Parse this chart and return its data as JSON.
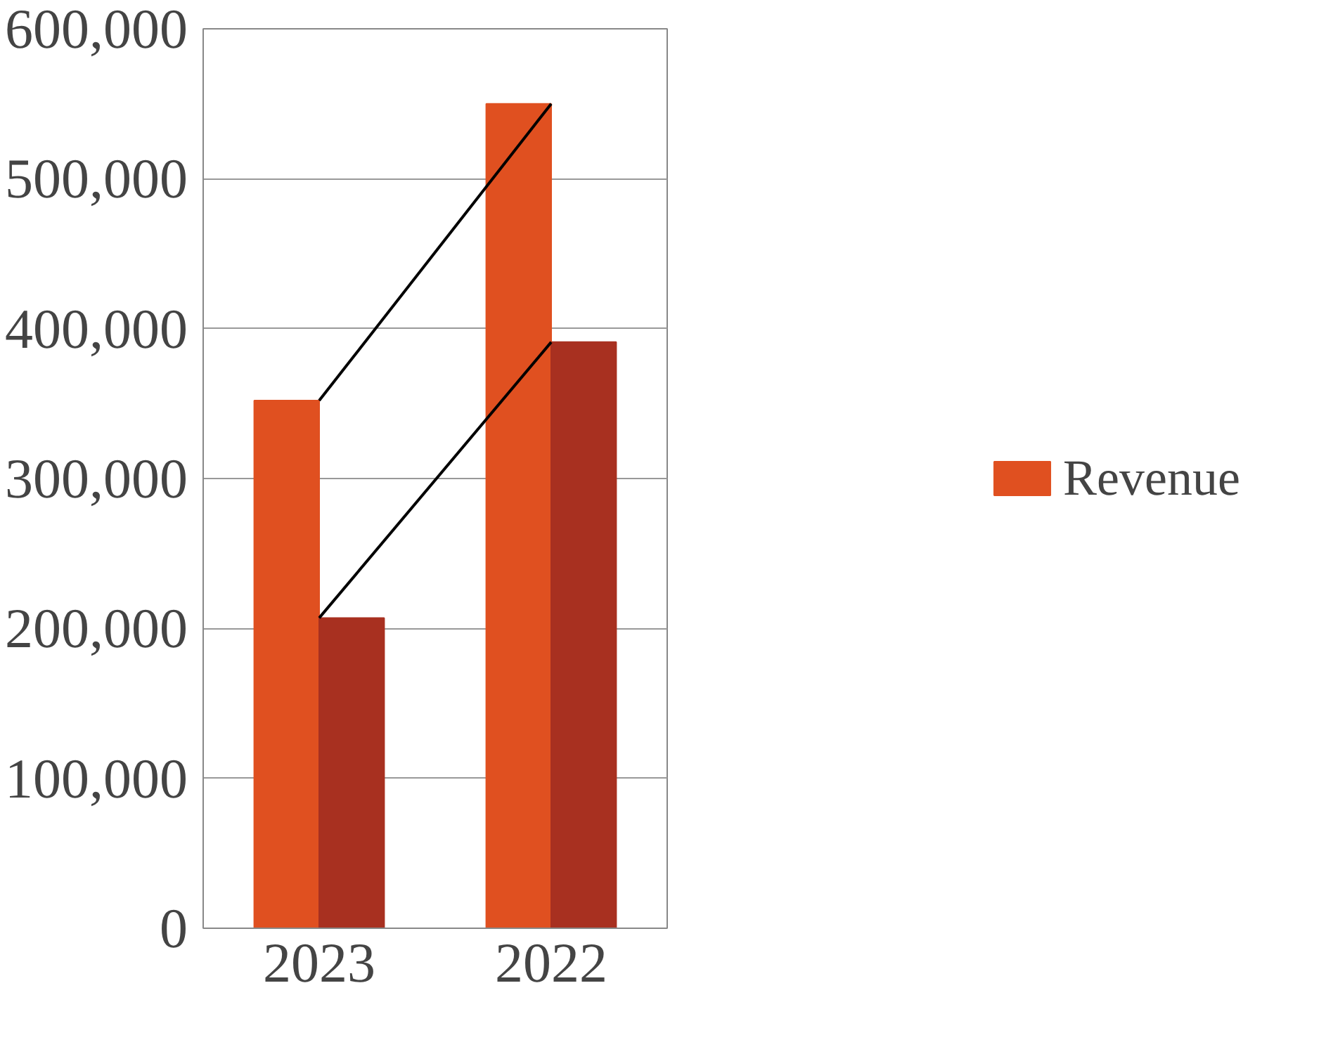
{
  "chart_data": {
    "type": "bar",
    "categories": [
      "2023",
      "2022"
    ],
    "series": [
      {
        "name": "Revenue",
        "color": "#e05020",
        "values": [
          352000,
          550000
        ]
      },
      {
        "color": "#a83020",
        "values": [
          207000,
          391000
        ]
      },
      {
        "type": "line",
        "color": "#000000",
        "values": [
          352000,
          550000
        ]
      },
      {
        "type": "line",
        "color": "#000000",
        "values": [
          207000,
          391000
        ]
      }
    ],
    "ylim": [
      0,
      600000
    ],
    "yticks": [
      {
        "value": 0,
        "label": "0"
      },
      {
        "value": 100000,
        "label": "100,000"
      },
      {
        "value": 200000,
        "label": "200,000"
      },
      {
        "value": 300000,
        "label": "300,000"
      },
      {
        "value": 400000,
        "label": "400,000"
      },
      {
        "value": 500000,
        "label": "500,000"
      },
      {
        "value": 600000,
        "label": "600,000"
      }
    ],
    "grid": "y",
    "legend": "right"
  }
}
